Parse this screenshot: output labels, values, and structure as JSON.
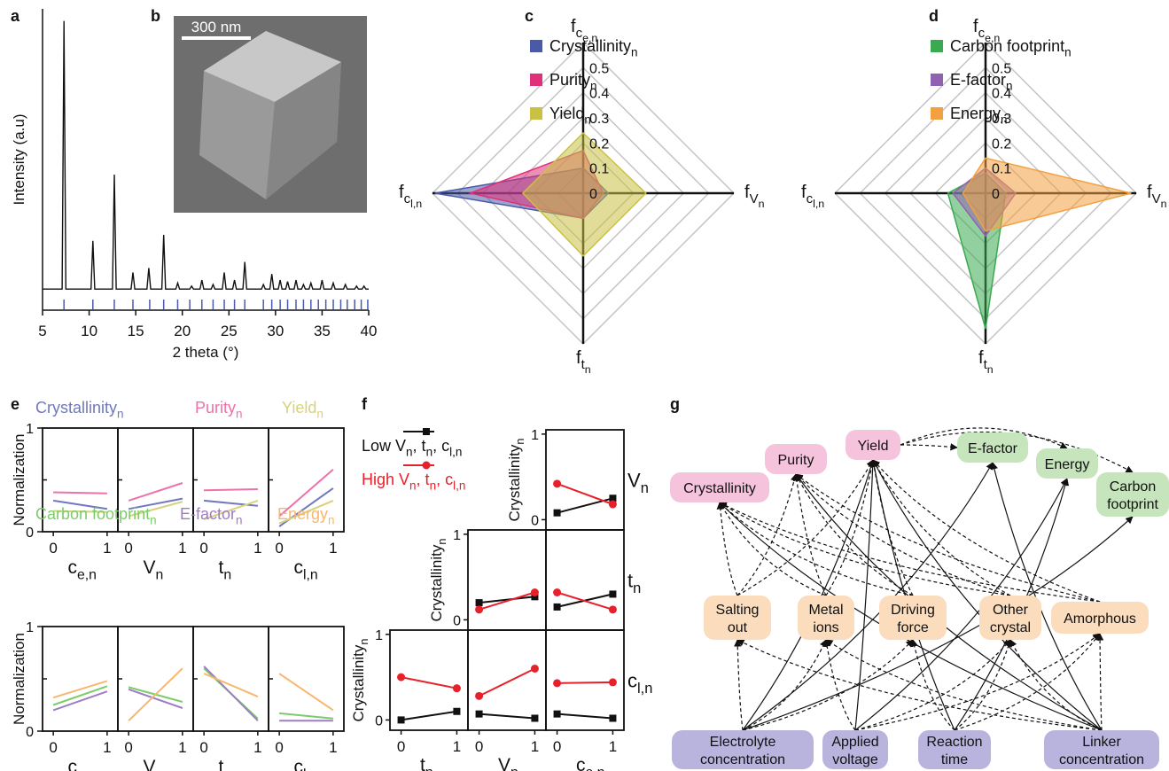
{
  "panel_labels": [
    "a",
    "b",
    "c",
    "d",
    "e",
    "f",
    "g"
  ],
  "image": {
    "scale_bar": "300 nm"
  },
  "chart_data": [
    {
      "type": "line",
      "xlabel": "2 theta (°)",
      "ylabel": "Intensity (a.u)",
      "color": "#111111",
      "reference_color": "#4a5aa8",
      "xlim": [
        5,
        40
      ],
      "xticks": [
        5,
        10,
        15,
        20,
        25,
        30,
        35,
        40
      ],
      "ylim": [
        0,
        100
      ],
      "x": [
        5,
        7.1,
        7.3,
        7.5,
        10.2,
        10.4,
        10.6,
        12.5,
        12.7,
        12.9,
        14.5,
        14.7,
        14.9,
        16.2,
        16.4,
        16.6,
        17.8,
        18.0,
        18.2,
        19.3,
        19.5,
        19.7,
        20.8,
        21.0,
        21.2,
        21.9,
        22.1,
        22.3,
        23.1,
        23.3,
        23.5,
        24.3,
        24.5,
        24.7,
        25.4,
        25.6,
        25.8,
        26.5,
        26.7,
        26.9,
        28.5,
        28.7,
        28.9,
        29.4,
        29.6,
        29.8,
        30.3,
        30.5,
        30.7,
        31.1,
        31.3,
        31.5,
        32.0,
        32.2,
        32.4,
        32.8,
        33.0,
        33.2,
        33.6,
        33.8,
        34.0,
        34.8,
        35.0,
        35.2,
        36.0,
        36.2,
        36.4,
        37.3,
        37.5,
        37.7,
        38.5,
        38.7,
        38.9,
        39.3,
        39.5,
        39.7,
        40
      ],
      "y": [
        7,
        7,
        96,
        7,
        7,
        23,
        7,
        7,
        45,
        7,
        7,
        12.5,
        7,
        7,
        14,
        7,
        7,
        25,
        7,
        7,
        9,
        7,
        7,
        8,
        7,
        7,
        10,
        7,
        7,
        8.5,
        7,
        7,
        12.5,
        7,
        7,
        10,
        7,
        7,
        16,
        7,
        7,
        8.5,
        7,
        7,
        12,
        7,
        7,
        10,
        7,
        7,
        9.5,
        7,
        7,
        10,
        7,
        7,
        8.5,
        7,
        7,
        9,
        7,
        7,
        10,
        7,
        7,
        9,
        7,
        7,
        8.5,
        7,
        7,
        8,
        7,
        7,
        8,
        7,
        7
      ],
      "reference_peaks": [
        7.3,
        10.4,
        12.7,
        14.7,
        16.5,
        18.0,
        19.5,
        20.8,
        22.1,
        23.3,
        24.5,
        25.6,
        26.7,
        28.7,
        29.6,
        30.5,
        31.3,
        32.2,
        33.0,
        33.8,
        34.6,
        35.4,
        36.2,
        37.0,
        37.7,
        38.5,
        39.2,
        39.9
      ]
    },
    {
      "type": "radar",
      "axes": [
        [
          "f",
          "c",
          "e,n"
        ],
        [
          "f",
          "V",
          "n"
        ],
        [
          "f",
          "t",
          "n"
        ],
        [
          "f",
          "c",
          "l,n"
        ]
      ],
      "rlim": [
        0,
        0.6
      ],
      "rticks": [
        0,
        0.1,
        0.2,
        0.3,
        0.4,
        0.5
      ],
      "series": [
        {
          "name": [
            "Crystallinity",
            "n"
          ],
          "color": "#4a5aa8",
          "values": [
            0.1,
            0.1,
            0.1,
            0.59
          ]
        },
        {
          "name": [
            "Purity",
            "n"
          ],
          "color": "#e0307a",
          "values": [
            0.17,
            0.08,
            0.1,
            0.45
          ]
        },
        {
          "name": [
            "Yield",
            "n"
          ],
          "color": "#c9c143",
          "values": [
            0.24,
            0.25,
            0.25,
            0.24
          ]
        }
      ]
    },
    {
      "type": "radar",
      "axes": [
        [
          "f",
          "c",
          "e,n"
        ],
        [
          "f",
          "V",
          "n"
        ],
        [
          "f",
          "t",
          "n"
        ],
        [
          "f",
          "c",
          "l,n"
        ]
      ],
      "rlim": [
        0,
        0.6
      ],
      "rticks": [
        0,
        0.1,
        0.2,
        0.3,
        0.4,
        0.5
      ],
      "series": [
        {
          "name": [
            "Carbon footprint",
            "n"
          ],
          "color": "#3aaa50",
          "values": [
            0.08,
            0.08,
            0.54,
            0.15
          ]
        },
        {
          "name": [
            "E-factor",
            "n"
          ],
          "color": "#9262b2",
          "values": [
            0.1,
            0.12,
            0.17,
            0.13
          ]
        },
        {
          "name": [
            "Energy",
            "n"
          ],
          "color": "#f2a040",
          "values": [
            0.14,
            0.58,
            0.15,
            0.09
          ]
        }
      ]
    },
    {
      "type": "facet-line",
      "ylabel": "Normalization",
      "xlim": [
        -0.2,
        1.2
      ],
      "xticks": [
        0,
        1
      ],
      "ylim": [
        0,
        1
      ],
      "yticks": [
        0,
        1
      ],
      "series": [
        {
          "name": [
            "Crystallinity",
            "n"
          ],
          "color": "#6f78c0"
        },
        {
          "name": [
            "Purity",
            "n"
          ],
          "color": "#ec73a8"
        },
        {
          "name": [
            "Yield",
            "n"
          ],
          "color": "#d8d27a"
        }
      ],
      "facets": [
        {
          "xlabel": [
            "c",
            "e,n"
          ],
          "values": [
            [
              0.3,
              0.22
            ],
            [
              0.38,
              0.37
            ],
            [
              0.2,
              0.19
            ]
          ]
        },
        {
          "xlabel": [
            "V",
            "n"
          ],
          "values": [
            [
              0.22,
              0.32
            ],
            [
              0.3,
              0.47
            ],
            [
              0.15,
              0.29
            ]
          ]
        },
        {
          "xlabel": [
            "t",
            "n"
          ],
          "values": [
            [
              0.3,
              0.25
            ],
            [
              0.4,
              0.41
            ],
            [
              0.12,
              0.3
            ]
          ]
        },
        {
          "xlabel": [
            "c",
            "l,n"
          ],
          "values": [
            [
              0.05,
              0.42
            ],
            [
              0.15,
              0.6
            ],
            [
              0.08,
              0.3
            ]
          ]
        }
      ]
    },
    {
      "type": "facet-line",
      "ylabel": "Normalization",
      "xlim": [
        -0.2,
        1.2
      ],
      "xticks": [
        0,
        1
      ],
      "ylim": [
        0,
        1
      ],
      "yticks": [
        0,
        1
      ],
      "series": [
        {
          "name": [
            "Carbon footprint",
            "n"
          ],
          "color": "#7ccc6a"
        },
        {
          "name": [
            "E-factor",
            "n"
          ],
          "color": "#a07cc4"
        },
        {
          "name": [
            "Energy",
            "n"
          ],
          "color": "#f7b76f"
        }
      ],
      "facets": [
        {
          "xlabel": [
            "c",
            "e,n"
          ],
          "values": [
            [
              0.25,
              0.43
            ],
            [
              0.2,
              0.38
            ],
            [
              0.32,
              0.48
            ]
          ]
        },
        {
          "xlabel": [
            "V",
            "n"
          ],
          "values": [
            [
              0.42,
              0.28
            ],
            [
              0.4,
              0.22
            ],
            [
              0.1,
              0.6
            ]
          ]
        },
        {
          "xlabel": [
            "t",
            "n"
          ],
          "values": [
            [
              0.6,
              0.12
            ],
            [
              0.62,
              0.1
            ],
            [
              0.55,
              0.33
            ]
          ]
        },
        {
          "xlabel": [
            "c",
            "l,n"
          ],
          "values": [
            [
              0.17,
              0.12
            ],
            [
              0.1,
              0.1
            ],
            [
              0.55,
              0.2
            ]
          ]
        }
      ]
    },
    {
      "type": "pair-grid",
      "ylabel": [
        "Crystallinity",
        "n"
      ],
      "xlim": [
        -0.2,
        1.2
      ],
      "xticks": [
        0,
        1
      ],
      "ylim": [
        -0.12,
        1.05
      ],
      "yticks": [
        0,
        1
      ],
      "series": [
        {
          "name": [
            "Low V",
            "n",
            ", t",
            "n",
            ", c",
            "l,n"
          ],
          "color": "#111111"
        },
        {
          "name": [
            "High V",
            "n",
            ", t",
            "n",
            ", c",
            "l,n"
          ],
          "color": "#e8202a"
        }
      ],
      "columns": [
        [
          "t",
          "n"
        ],
        [
          "V",
          "n"
        ],
        [
          "c",
          "e,n"
        ]
      ],
      "rows": [
        {
          "label": [
            "V",
            "n"
          ],
          "cells": [
            [
              [
                0.08,
                0.25
              ],
              [
                0.42,
                0.18
              ]
            ]
          ]
        },
        {
          "label": [
            "t",
            "n"
          ],
          "cells": [
            [
              [
                0.2,
                0.27
              ],
              [
                0.12,
                0.32
              ]
            ],
            [
              [
                0.15,
                0.3
              ],
              [
                0.32,
                0.12
              ]
            ]
          ]
        },
        {
          "label": [
            "c",
            "l,n"
          ],
          "cells": [
            [
              [
                0.0,
                0.1
              ],
              [
                0.5,
                0.37
              ]
            ],
            [
              [
                0.07,
                0.02
              ],
              [
                0.28,
                0.6
              ]
            ],
            [
              [
                0.07,
                0.02
              ],
              [
                0.43,
                0.44
              ]
            ]
          ]
        }
      ]
    }
  ],
  "diagram": {
    "nodes": [
      {
        "label": [
          "Crystallinity"
        ],
        "color": "#f5c4dc"
      },
      {
        "label": [
          "Purity"
        ],
        "color": "#f5c4dc"
      },
      {
        "label": [
          "Yield"
        ],
        "color": "#f5c4dc"
      },
      {
        "label": [
          "E-factor"
        ],
        "color": "#c6e5bd"
      },
      {
        "label": [
          "Energy"
        ],
        "color": "#c6e5bd"
      },
      {
        "label": [
          "Carbon",
          "footprint"
        ],
        "color": "#c6e5bd"
      },
      {
        "label": [
          "Salting",
          "out"
        ],
        "color": "#fbdcbc"
      },
      {
        "label": [
          "Metal",
          "ions"
        ],
        "color": "#fbdcbc"
      },
      {
        "label": [
          "Driving",
          "force"
        ],
        "color": "#fbdcbc"
      },
      {
        "label": [
          "Other",
          "crystal"
        ],
        "color": "#fbdcbc"
      },
      {
        "label": [
          "Amorphous"
        ],
        "color": "#fbdcbc"
      },
      {
        "label": [
          "Electrolyte",
          "concentration"
        ],
        "color": "#b8b4dd"
      },
      {
        "label": [
          "Applied",
          "voltage"
        ],
        "color": "#b8b4dd"
      },
      {
        "label": [
          "Reaction",
          "time"
        ],
        "color": "#b8b4dd"
      },
      {
        "label": [
          "Linker",
          "concentration"
        ],
        "color": "#b8b4dd"
      }
    ]
  }
}
